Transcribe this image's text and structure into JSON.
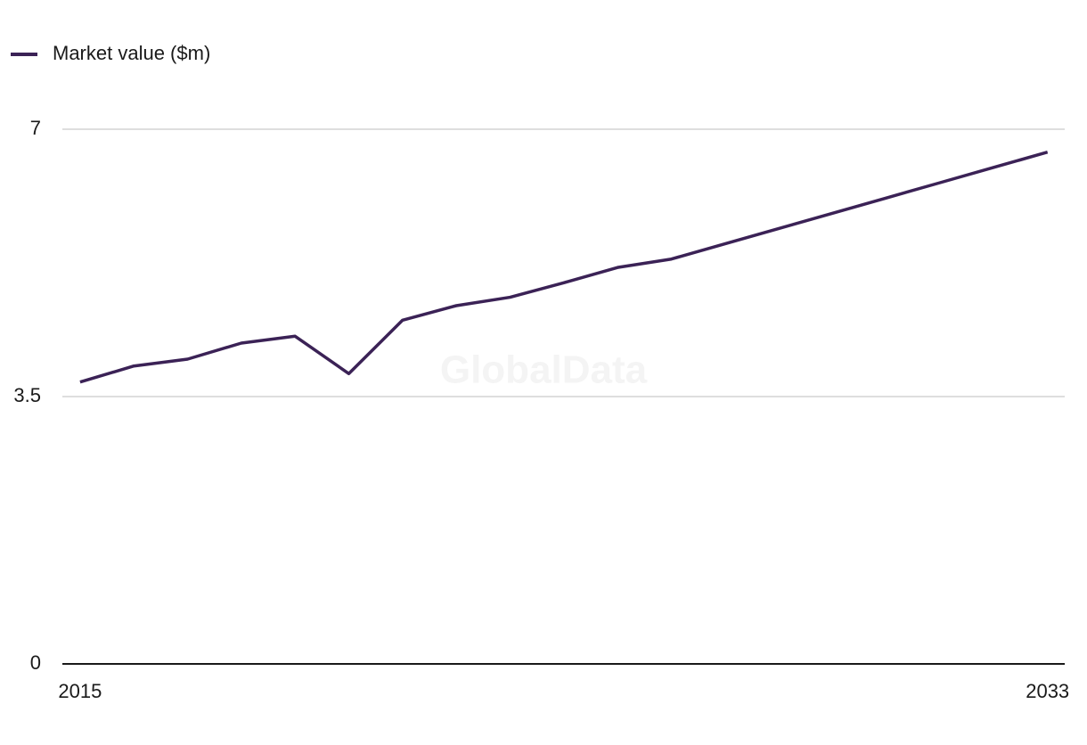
{
  "chart_data": {
    "type": "line",
    "watermark": "GlobalData",
    "x": [
      2015,
      2016,
      2017,
      2018,
      2019,
      2020,
      2021,
      2022,
      2023,
      2024,
      2025,
      2026,
      2027,
      2028,
      2029,
      2030,
      2031,
      2032,
      2033
    ],
    "series": [
      {
        "name": "Market value ($m)",
        "color": "#3b2256",
        "values": [
          3.69,
          3.9,
          3.99,
          4.2,
          4.29,
          3.8,
          4.5,
          4.69,
          4.8,
          4.99,
          5.19,
          5.3,
          5.5,
          5.7,
          5.9,
          6.1,
          6.3,
          6.5,
          6.7
        ]
      }
    ],
    "xlim": [
      2014.67,
      2033.32
    ],
    "xticks": [
      2015,
      2033
    ],
    "ylim": [
      0,
      7
    ],
    "yticks": [
      0,
      3.5,
      7
    ],
    "grid": true,
    "legend": "top-left"
  }
}
